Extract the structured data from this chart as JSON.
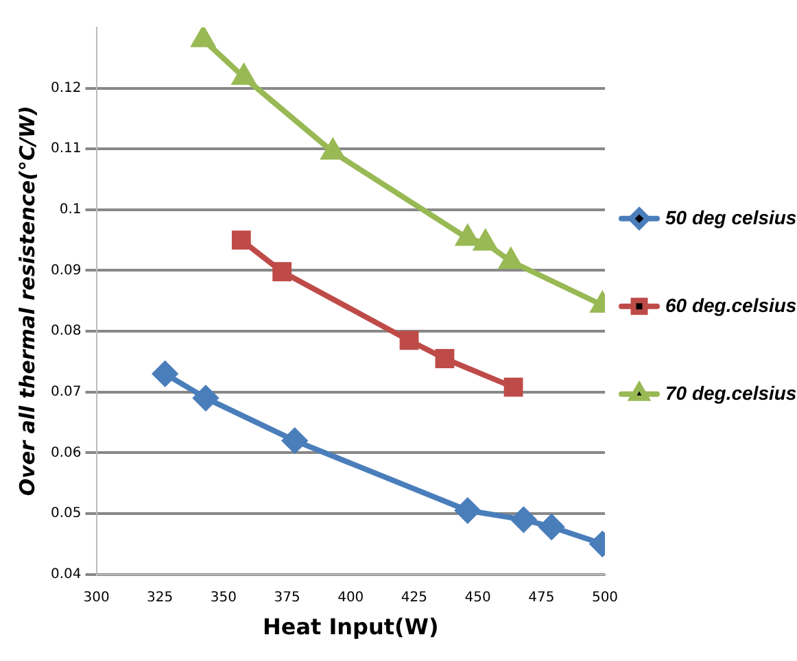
{
  "chart_data": {
    "type": "line",
    "xlabel": "Heat Input(W)",
    "ylabel": "Over all thermal resistence(°C/W)",
    "xlim": [
      300,
      500
    ],
    "xticks": [
      300,
      325,
      350,
      375,
      400,
      425,
      450,
      475,
      500
    ],
    "ylim": [
      0.04,
      0.13
    ],
    "yticks": [
      0.04,
      0.05,
      0.06,
      0.07,
      0.08,
      0.09,
      0.1,
      0.11,
      0.12
    ],
    "grid": "y",
    "legend": "right",
    "line_style": "solid",
    "series": [
      {
        "name": "50 deg celsius",
        "color": "#4a7ebb",
        "marker": "diamond",
        "x": [
          327,
          343,
          378,
          446,
          468,
          479,
          499
        ],
        "values": [
          0.073,
          0.069,
          0.062,
          0.0505,
          0.049,
          0.0478,
          0.045
        ]
      },
      {
        "name": "60 deg.celsius",
        "color": "#be4b48",
        "marker": "square",
        "x": [
          357,
          373,
          423,
          437,
          464
        ],
        "values": [
          0.095,
          0.0898,
          0.0785,
          0.0755,
          0.0708
        ]
      },
      {
        "name": "70 deg.celsius",
        "color": "#98b954",
        "marker": "triangle",
        "x": [
          342,
          358,
          393,
          446,
          453,
          463,
          499
        ],
        "values": [
          0.128,
          0.1218,
          0.1095,
          0.0953,
          0.0945,
          0.0915,
          0.0843
        ]
      }
    ]
  }
}
